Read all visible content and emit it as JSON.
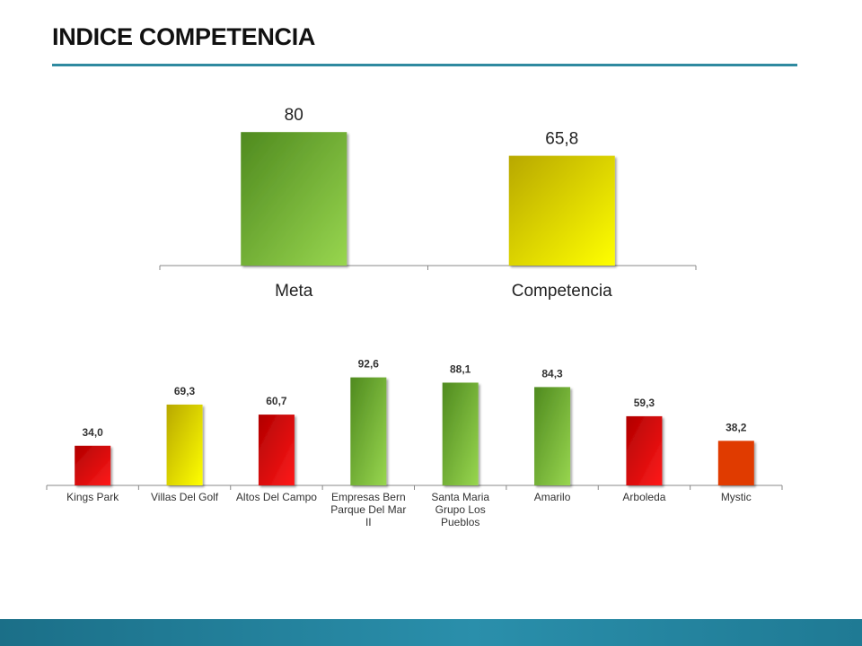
{
  "page": {
    "title": "INDICE COMPETENCIA"
  },
  "colors": {
    "accent_rule": "#2f8aa0",
    "footer": "#1f7a94",
    "green": "#7bc142",
    "yellow": "#e8e200",
    "red": "#e00000",
    "orange_red": "#e03a00"
  },
  "chart_data": [
    {
      "type": "bar",
      "title": "",
      "categories": [
        "Meta",
        "Competencia"
      ],
      "values": [
        80,
        65.8
      ],
      "value_labels": [
        "80",
        "65,8"
      ],
      "bar_colors": [
        "green",
        "yellow"
      ],
      "xlabel": "",
      "ylabel": "",
      "ylim": [
        0,
        100
      ],
      "grid": false,
      "legend": "none"
    },
    {
      "type": "bar",
      "title": "",
      "categories": [
        "Kings Park",
        "Villas Del Golf",
        "Altos Del Campo",
        "Empresas Bern Parque Del Mar II",
        "Santa Maria Grupo Los Pueblos",
        "Amarilo",
        "Arboleda",
        "Mystic"
      ],
      "category_lines": [
        [
          "Kings Park"
        ],
        [
          "Villas Del Golf"
        ],
        [
          "Altos Del Campo"
        ],
        [
          "Empresas Bern",
          "Parque Del Mar",
          "II"
        ],
        [
          "Santa Maria",
          "Grupo Los",
          "Pueblos"
        ],
        [
          "Amarilo"
        ],
        [
          "Arboleda"
        ],
        [
          "Mystic"
        ]
      ],
      "values": [
        34.0,
        69.3,
        60.7,
        92.6,
        88.1,
        84.3,
        59.3,
        38.2
      ],
      "value_labels": [
        "34,0",
        "69,3",
        "60,7",
        "92,6",
        "88,1",
        "84,3",
        "59,3",
        "38,2"
      ],
      "bar_colors": [
        "red",
        "yellow",
        "red",
        "green",
        "green",
        "green",
        "red",
        "orange_red"
      ],
      "xlabel": "",
      "ylabel": "",
      "ylim": [
        0,
        100
      ],
      "grid": false,
      "legend": "none"
    }
  ]
}
